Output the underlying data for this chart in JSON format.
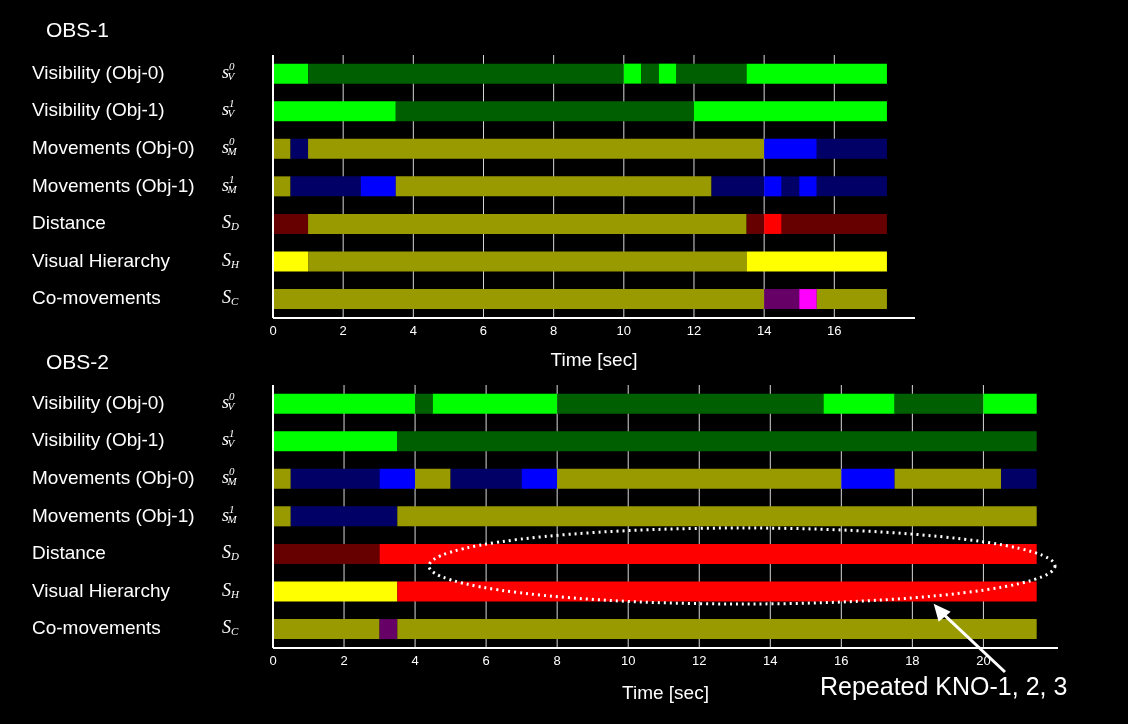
{
  "chart_data": [
    {
      "type": "bar",
      "orientation": "horizontal",
      "stacked": true,
      "title": "OBS-1",
      "xlabel": "Time [sec]",
      "categories": [
        "Visibility (Obj-0)",
        "Visibility (Obj-1)",
        "Movements (Obj-0)",
        "Movements (Obj-1)",
        "Distance",
        "Visual Hierarchy",
        "Co-movements"
      ],
      "y2_categories": [
        "s$^{0}$$_{V}$",
        "s$^{1}$$_{V}$",
        "s$^{0}$$_{M}$",
        "s$^{1}$$_{M}$",
        "S$_{D}$",
        "S$_{H}$",
        "S$_{C}$"
      ],
      "xlim": [
        0,
        18.3
      ],
      "xticks": [
        0,
        2,
        4,
        6,
        8,
        10,
        12,
        14,
        16
      ],
      "grid": "x",
      "series": [
        {
          "values": [
            1,
            3.5,
            0.5,
            0.5,
            1,
            1,
            14
          ],
          "colors": [
            "#00ff00",
            "#00ff00",
            "#999900",
            "#999900",
            "#660000",
            "#ffff00",
            "#999900"
          ]
        },
        {
          "values": [
            9,
            8.5,
            0.5,
            2,
            12.5,
            12.5,
            1
          ],
          "colors": [
            "#005f00",
            "#005f00",
            "#000066",
            "#000066",
            "#999900",
            "#999900",
            "#660066"
          ]
        },
        {
          "values": [
            0.5,
            5.5,
            13,
            1,
            0.5,
            4,
            0.5
          ],
          "colors": [
            "#00ff00",
            "#00ff00",
            "#999900",
            "#0000ff",
            "#660000",
            "#ffff00",
            "#ff00ff"
          ]
        },
        {
          "values": [
            0.5,
            null,
            1.5,
            9,
            0.5,
            null,
            2
          ],
          "colors": [
            "#005f00",
            null,
            "#0000ff",
            "#999900",
            "#ff0000",
            null,
            "#999900"
          ]
        },
        {
          "values": [
            0.5,
            null,
            2,
            1.5,
            3,
            null,
            null
          ],
          "colors": [
            "#00ff00",
            null,
            "#000066",
            "#000066",
            "#660000",
            null,
            null
          ]
        },
        {
          "values": [
            2,
            null,
            null,
            0.5,
            null,
            null,
            null
          ],
          "colors": [
            "#005f00",
            null,
            null,
            "#0000ff",
            null,
            null,
            null
          ]
        },
        {
          "values": [
            4,
            null,
            null,
            0.5,
            null,
            null,
            null
          ],
          "colors": [
            "#00ff00",
            null,
            null,
            "#000066",
            null,
            null,
            null
          ]
        },
        {
          "values": [
            null,
            null,
            null,
            0.5,
            null,
            null,
            null
          ],
          "colors": [
            null,
            null,
            null,
            "#0000ff",
            null,
            null,
            null
          ]
        },
        {
          "values": [
            null,
            null,
            null,
            2,
            null,
            null,
            null
          ],
          "colors": [
            null,
            null,
            null,
            "#000066",
            null,
            null,
            null
          ]
        }
      ]
    },
    {
      "type": "bar",
      "orientation": "horizontal",
      "stacked": true,
      "title": "OBS-2",
      "xlabel": "Time [sec]",
      "categories": [
        "Visibility (Obj-0)",
        "Visibility (Obj-1)",
        "Movements (Obj-0)",
        "Movements (Obj-1)",
        "Distance",
        "Visual Hierarchy",
        "Co-movements"
      ],
      "y2_categories": [
        "s$^{0}$$_{V}$",
        "s$^{1}$$_{V}$",
        "s$^{0}$$_{M}$",
        "s$^{1}$$_{M}$",
        "S$_{D}$",
        "S$_{H}$",
        "S$_{C}$"
      ],
      "xlim": [
        0,
        22.1
      ],
      "xticks": [
        0,
        2,
        4,
        6,
        8,
        10,
        12,
        14,
        16,
        18,
        20
      ],
      "grid": "x",
      "annotations": [
        {
          "text": "Repeated KNO-1, 2, 3",
          "x": 18.6,
          "y": "Visual Hierarchy"
        }
      ],
      "series": [
        {
          "values": [
            4,
            3.5,
            0.5,
            0.5,
            3,
            3.5,
            3
          ],
          "colors": [
            "#00ff00",
            "#00ff00",
            "#999900",
            "#999900",
            "#660000",
            "#ffff00",
            "#999900"
          ]
        },
        {
          "values": [
            0.5,
            18,
            2.5,
            3,
            18.5,
            18,
            0.5
          ],
          "colors": [
            "#005f00",
            "#005f00",
            "#000066",
            "#000066",
            "#ff0000",
            "#ff0000",
            "#660066"
          ]
        },
        {
          "values": [
            3.5,
            null,
            1,
            18,
            null,
            null,
            18
          ],
          "colors": [
            "#00ff00",
            null,
            "#0000ff",
            "#999900",
            null,
            null,
            "#999900"
          ]
        },
        {
          "values": [
            7.5,
            null,
            1,
            null,
            null,
            null,
            null
          ],
          "colors": [
            "#005f00",
            null,
            "#999900",
            null,
            null,
            null,
            null
          ]
        },
        {
          "values": [
            2,
            null,
            2,
            null,
            null,
            null,
            null
          ],
          "colors": [
            "#00ff00",
            null,
            "#000066",
            null,
            null,
            null,
            null
          ]
        },
        {
          "values": [
            2.5,
            null,
            1,
            null,
            null,
            null,
            null
          ],
          "colors": [
            "#005f00",
            null,
            "#0000ff",
            null,
            null,
            null,
            null
          ]
        },
        {
          "values": [
            1.5,
            null,
            8,
            null,
            null,
            null,
            null
          ],
          "colors": [
            "#00ff00",
            null,
            "#999900",
            null,
            null,
            null,
            null
          ]
        },
        {
          "values": [
            null,
            null,
            1.5,
            null,
            null,
            null,
            null
          ],
          "colors": [
            null,
            null,
            "#0000ff",
            null,
            null,
            null,
            null
          ]
        },
        {
          "values": [
            null,
            null,
            3,
            null,
            null,
            null,
            null
          ],
          "colors": [
            null,
            null,
            "#999900",
            null,
            null,
            null,
            null
          ]
        },
        {
          "values": [
            null,
            null,
            1,
            null,
            null,
            null,
            null
          ],
          "colors": [
            null,
            null,
            "#000066",
            null,
            null,
            null,
            null
          ]
        }
      ]
    }
  ]
}
